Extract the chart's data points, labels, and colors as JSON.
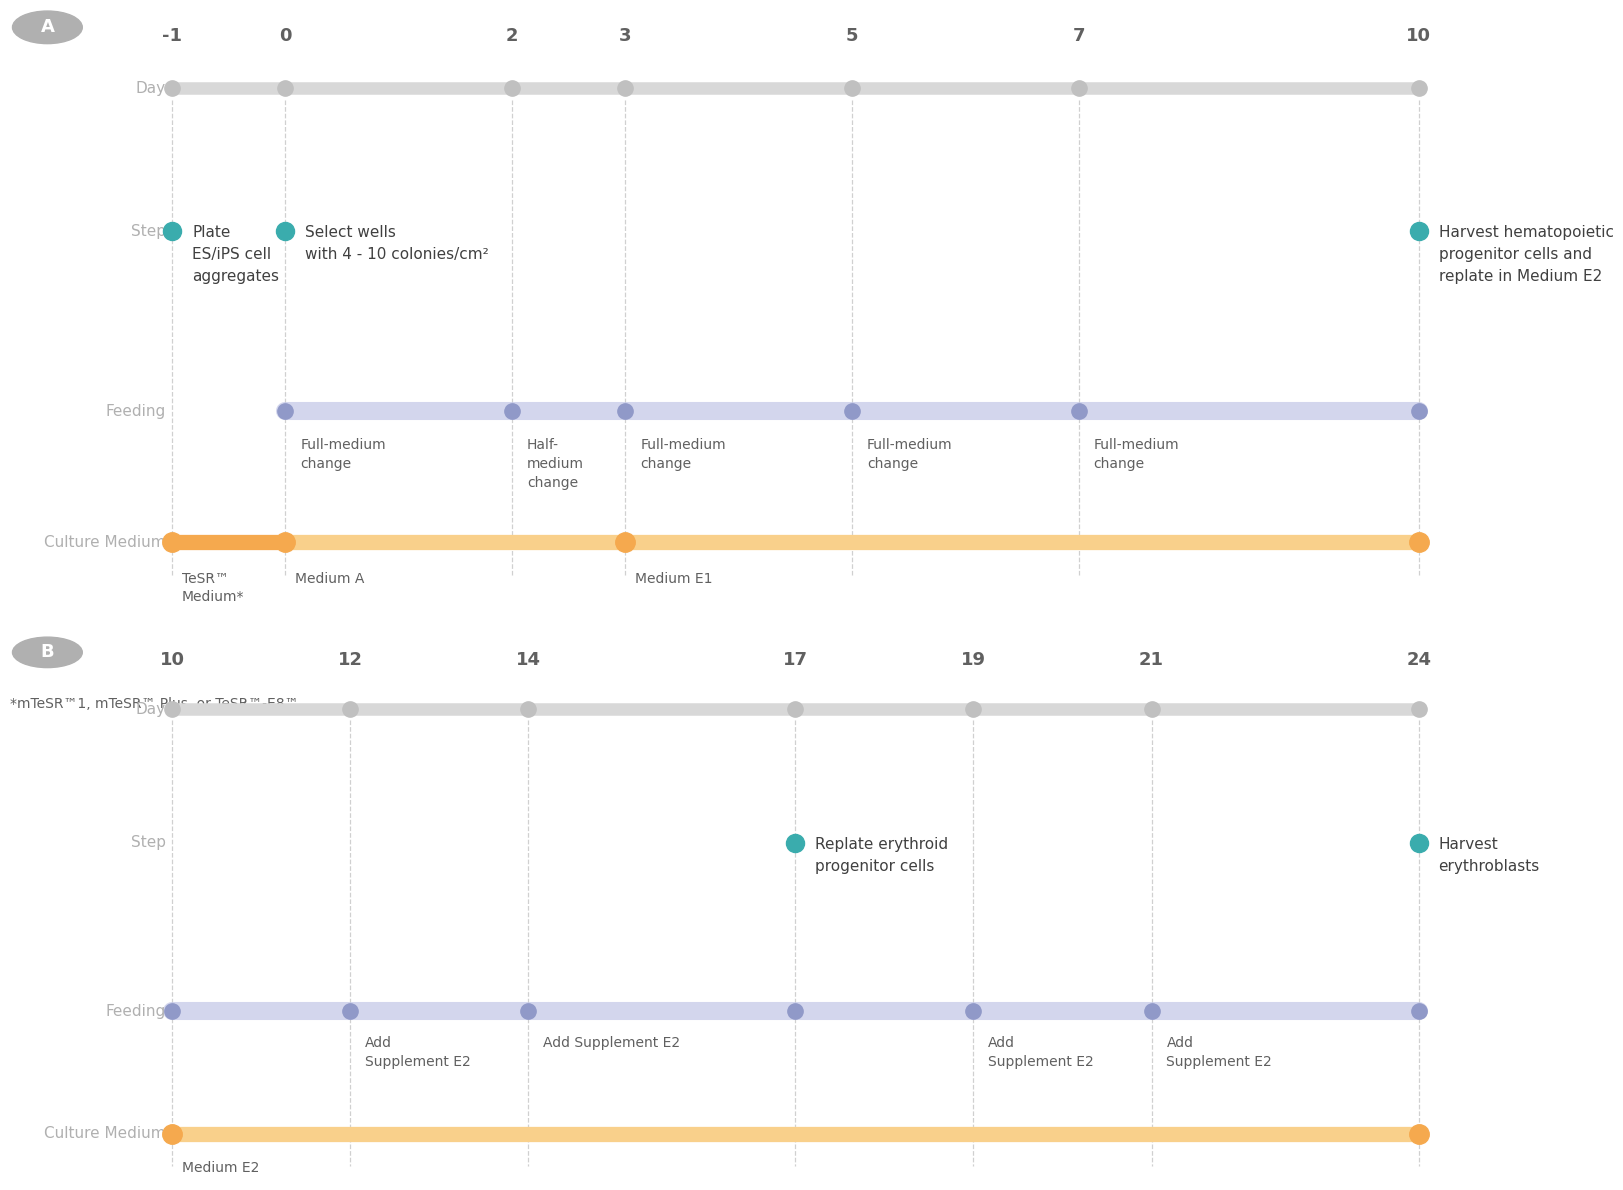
{
  "panel_A": {
    "days": [
      -1,
      0,
      2,
      3,
      5,
      7,
      10
    ],
    "day_labels": [
      "-1",
      "0",
      "2",
      "3",
      "5",
      "7",
      "10"
    ],
    "step_dots": [
      {
        "day": -1,
        "label": "Plate\nES/iPS cell\naggregates"
      },
      {
        "day": 0,
        "label": "Select wells\nwith 4 - 10 colonies/cm²"
      },
      {
        "day": 10,
        "label": "Harvest hematopoietic\nprogenitor cells and\nreplate in Medium E2"
      }
    ],
    "feeding_dots": [
      0,
      2,
      3,
      5,
      7,
      10
    ],
    "feeding_labels": [
      {
        "day": 0,
        "label": "Full-medium\nchange"
      },
      {
        "day": 2,
        "label": "Half-\nmedium\nchange"
      },
      {
        "day": 3,
        "label": "Full-medium\nchange"
      },
      {
        "day": 5,
        "label": "Full-medium\nchange"
      },
      {
        "day": 7,
        "label": "Full-medium\nchange"
      }
    ],
    "culture_dots": [
      -1,
      0,
      3,
      10
    ],
    "culture_labels": [
      {
        "day": -1,
        "label": "TeSR™\nMedium*"
      },
      {
        "day": 0,
        "label": "Medium A"
      },
      {
        "day": 3,
        "label": "Medium E1"
      }
    ],
    "footnote": "*mTeSR™1, mTeSR™ Plus, or TeSR™-E8™"
  },
  "panel_B": {
    "days": [
      10,
      12,
      14,
      17,
      19,
      21,
      24
    ],
    "day_labels": [
      "10",
      "12",
      "14",
      "17",
      "19",
      "21",
      "24"
    ],
    "step_dots": [
      {
        "day": 17,
        "label": "Replate erythroid\nprogenitor cells"
      },
      {
        "day": 24,
        "label": "Harvest\nerythroblasts"
      }
    ],
    "feeding_dots": [
      10,
      12,
      14,
      17,
      19,
      21,
      24
    ],
    "feeding_labels": [
      {
        "day": 12,
        "label": "Add\nSupplement E2"
      },
      {
        "day": 14,
        "label": "Add Supplement E2"
      },
      {
        "day": 19,
        "label": "Add\nSupplement E2"
      },
      {
        "day": 21,
        "label": "Add\nSupplement E2"
      }
    ],
    "culture_dots": [
      10,
      24
    ],
    "culture_labels": [
      {
        "day": 10,
        "label": "Medium E2"
      }
    ]
  },
  "colors": {
    "day_line": "#d8d8d8",
    "day_dot": "#c0c0c0",
    "step_dot": "#3aacad",
    "feeding_line": "#c5c9e8",
    "feeding_dot": "#9099c8",
    "culture_line_orange": "#f5a94e",
    "culture_line_light": "#f9d08b",
    "culture_dot": "#f5a94e",
    "dashed_line": "#c8c8c8",
    "label_color": "#b0b0b0",
    "text_color": "#606060",
    "step_text_color": "#404040",
    "panel_circle_bg": "#b0b0b0",
    "panel_circle_text": "#ffffff"
  }
}
